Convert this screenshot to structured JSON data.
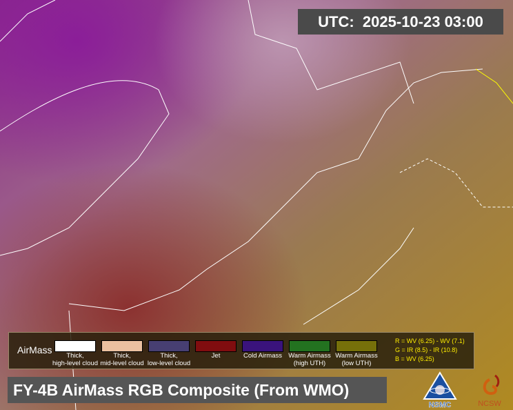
{
  "timestamp": {
    "label": "UTC:",
    "value": "2025-10-23 03:00"
  },
  "legend": {
    "title": "AirMass",
    "items": [
      {
        "color": "#ffffff",
        "line1": "Thick,",
        "line2": "high-level cloud"
      },
      {
        "color": "#ebc0a0",
        "line1": "Thick,",
        "line2": "mid-level cloud"
      },
      {
        "color": "#473f72",
        "line1": "Thick,",
        "line2": "low-level cloud"
      },
      {
        "color": "#800d0f",
        "line1": "Jet",
        "line2": ""
      },
      {
        "color": "#3a137c",
        "line1": "Cold Airmass",
        "line2": ""
      },
      {
        "color": "#237220",
        "line1": "Warm Airmass",
        "line2": "(high UTH)"
      },
      {
        "color": "#76700a",
        "line1": "Warm Airmass",
        "line2": "(low UTH)"
      }
    ],
    "formula": [
      "R = WV (6.25)  - WV (7.1)",
      "G = IR (8.5)  - IR (10.8)",
      "B = WV (6.25)"
    ]
  },
  "title": "FY-4B AirMass RGB Composite (From WMO)",
  "logos": {
    "nsmc": "NSMC",
    "ncsw": "NCSW"
  }
}
